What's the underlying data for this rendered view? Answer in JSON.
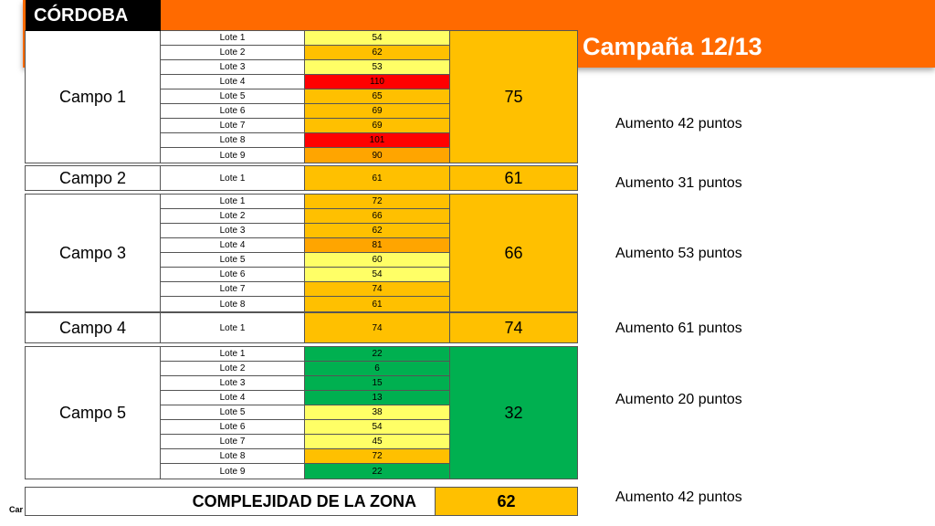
{
  "header": {
    "region": "CÓRDOBA",
    "campaign": "Campaña 12/13",
    "bar_color": "#ff6a00"
  },
  "colors": {
    "red": "#ff0000",
    "orange": "#ffa500",
    "amber": "#ffc000",
    "yellow": "#ffff66",
    "green": "#00b050"
  },
  "campos": [
    {
      "name": "Campo 1",
      "average": "75",
      "average_color": "#ffc000",
      "lotes": [
        {
          "name": "Lote 1",
          "value": "54",
          "color": "#ffff66"
        },
        {
          "name": "Lote 2",
          "value": "62",
          "color": "#ffc000"
        },
        {
          "name": "Lote 3",
          "value": "53",
          "color": "#ffff66"
        },
        {
          "name": "Lote 4",
          "value": "110",
          "color": "#ff0000"
        },
        {
          "name": "Lote 5",
          "value": "65",
          "color": "#ffc000"
        },
        {
          "name": "Lote 6",
          "value": "69",
          "color": "#ffc000"
        },
        {
          "name": "Lote 7",
          "value": "69",
          "color": "#ffc000"
        },
        {
          "name": "Lote 8",
          "value": "101",
          "color": "#ff0000"
        },
        {
          "name": "Lote 9",
          "value": "90",
          "color": "#ffa500"
        }
      ],
      "increase": "Aumento 42 puntos"
    },
    {
      "name": "Campo 2",
      "average": "61",
      "average_color": "#ffc000",
      "lotes": [
        {
          "name": "Lote 1",
          "value": "61",
          "color": "#ffc000"
        }
      ],
      "increase": "Aumento 31 puntos"
    },
    {
      "name": "Campo 3",
      "average": "66",
      "average_color": "#ffc000",
      "lotes": [
        {
          "name": "Lote 1",
          "value": "72",
          "color": "#ffc000"
        },
        {
          "name": "Lote 2",
          "value": "66",
          "color": "#ffc000"
        },
        {
          "name": "Lote 3",
          "value": "62",
          "color": "#ffc000"
        },
        {
          "name": "Lote 4",
          "value": "81",
          "color": "#ffa500"
        },
        {
          "name": "Lote 5",
          "value": "60",
          "color": "#ffff66"
        },
        {
          "name": "Lote 6",
          "value": "54",
          "color": "#ffff66"
        },
        {
          "name": "Lote 7",
          "value": "74",
          "color": "#ffc000"
        },
        {
          "name": "Lote 8",
          "value": "61",
          "color": "#ffc000"
        }
      ],
      "increase": "Aumento 53 puntos"
    },
    {
      "name": "Campo 4",
      "average": "74",
      "average_color": "#ffc000",
      "lotes": [
        {
          "name": "Lote 1",
          "value": "74",
          "color": "#ffc000"
        }
      ],
      "increase": "Aumento  61 puntos"
    },
    {
      "name": "Campo 5",
      "average": "32",
      "average_color": "#00b050",
      "lotes": [
        {
          "name": "Lote 1",
          "value": "22",
          "color": "#00b050"
        },
        {
          "name": "Lote 2",
          "value": "6",
          "color": "#00b050"
        },
        {
          "name": "Lote 3",
          "value": "15",
          "color": "#00b050"
        },
        {
          "name": "Lote 4",
          "value": "13",
          "color": "#00b050"
        },
        {
          "name": "Lote 5",
          "value": "38",
          "color": "#ffff66"
        },
        {
          "name": "Lote 6",
          "value": "54",
          "color": "#ffff66"
        },
        {
          "name": "Lote 7",
          "value": "45",
          "color": "#ffff66"
        },
        {
          "name": "Lote 8",
          "value": "72",
          "color": "#ffc000"
        },
        {
          "name": "Lote 9",
          "value": "22",
          "color": "#00b050"
        }
      ],
      "increase": "Aumento 20 puntos"
    }
  ],
  "complejidad": {
    "label": "COMPLEJIDAD DE LA ZONA",
    "value": "62",
    "increase": "Aumento 42 puntos"
  },
  "footer": "Car"
}
